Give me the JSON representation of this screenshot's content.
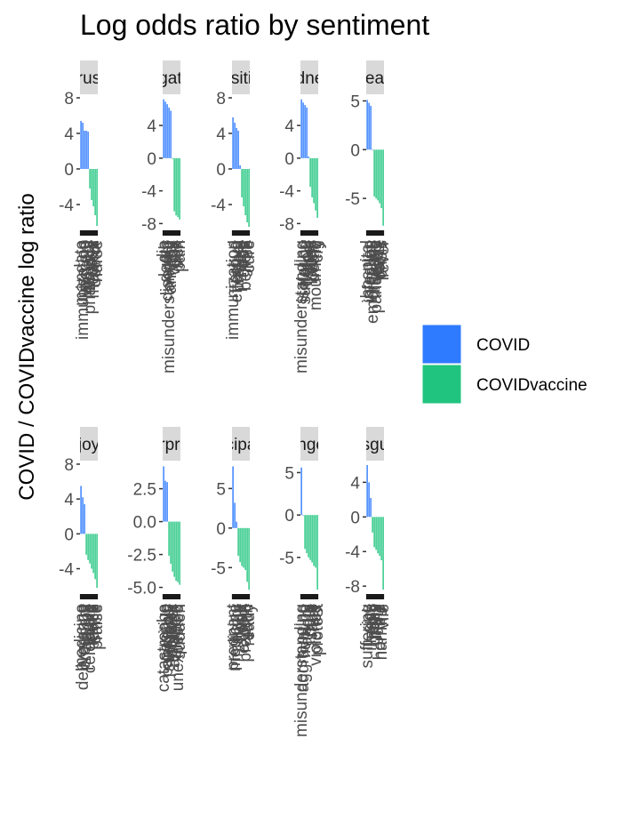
{
  "chart_data": {
    "type": "bar",
    "title": "Log odds ratio by sentiment",
    "xlabel": "",
    "ylabel": "COVID / COVIDvaccine log ratio",
    "legend": {
      "position": "right",
      "title": ""
    },
    "colors": {
      "COVID": "#2f7bff",
      "COVIDvaccine": "#21c47f"
    },
    "grid": false,
    "panels": [
      {
        "strip": "trust",
        "yticks": [
          "8",
          "4",
          "0",
          "-4"
        ],
        "tick_values": [
          8,
          4,
          0,
          -4
        ],
        "ylim": [
          -6.6,
          8.2
        ],
        "words": [
          "mandate",
          "immunization",
          "vaccine",
          "patient",
          "ministry",
          "pharmacy",
          "dose",
          "medical",
          "doctor",
          "nurse"
        ],
        "visible_words": [
          "mandate",
          "immunization"
        ],
        "values": [
          5.4,
          5.2,
          4.3,
          4.3,
          4.2,
          -2.2,
          -3.5,
          -4.2,
          -5.2,
          -6.4
        ]
      },
      {
        "strip": "negative",
        "yticks": [
          "4",
          "0",
          "-4",
          "-8"
        ],
        "tick_values": [
          4,
          0,
          -4,
          -8
        ],
        "ylim": [
          -8.5,
          7.6
        ],
        "words": [
          "die",
          "death",
          "disorder",
          "misunderstanding",
          "anxiety",
          "risk",
          "virus",
          "bad",
          "sick",
          "pain"
        ],
        "visible_words": [
          "die",
          "disorder",
          "misunderstanding"
        ],
        "values": [
          7.2,
          6.9,
          6.6,
          6.2,
          5.8,
          -0.1,
          -6.5,
          -7.0,
          -7.2,
          -7.5
        ]
      },
      {
        "strip": "positive",
        "yticks": [
          "8",
          "4",
          "0",
          "-4"
        ],
        "tick_values": [
          8,
          4,
          0,
          -4
        ],
        "ylim": [
          -6.6,
          8.2
        ],
        "words": [
          "immunization",
          "proud",
          "effective",
          "protect",
          "safe",
          "hope",
          "good",
          "benefit",
          "free",
          "cure"
        ],
        "visible_words": [
          "immunization",
          "proud"
        ],
        "values": [
          5.8,
          5.2,
          4.6,
          4.3,
          0.4,
          -3.2,
          -4.2,
          -5.2,
          -6.0,
          -6.5
        ]
      },
      {
        "strip": "sadness",
        "yticks": [
          "4",
          "0",
          "-4",
          "-8"
        ],
        "tick_values": [
          4,
          0,
          -4,
          -8
        ],
        "ylim": [
          -8.5,
          7.6
        ],
        "words": [
          "misunderstanding",
          "isolation",
          "suffering",
          "widow",
          "grief",
          "loss",
          "lonely",
          "death",
          "mourning",
          "cry"
        ],
        "visible_words": [
          "misunderstanding",
          "isolation"
        ],
        "values": [
          7.2,
          6.8,
          6.5,
          6.2,
          0.2,
          -3.5,
          -4.8,
          -5.5,
          -6.4,
          -7.3
        ]
      },
      {
        "strip": "fear",
        "yticks": [
          "5",
          "0",
          "-5"
        ],
        "tick_values": [
          5,
          0,
          -5
        ],
        "ylim": [
          -8.0,
          5.5
        ],
        "words": [
          "hospital",
          "infection",
          "injection",
          "emergency",
          "disease",
          "pandemic",
          "worry",
          "panic",
          "crisis",
          "fever"
        ],
        "visible_words": [
          "hospital",
          "infection"
        ],
        "values": [
          5.1,
          4.8,
          4.5,
          0.0,
          -4.8,
          -5.0,
          -5.2,
          -5.5,
          -6.0,
          -7.8
        ]
      },
      {
        "strip": "joy",
        "yticks": [
          "8",
          "4",
          "0",
          "-4"
        ],
        "tick_values": [
          8,
          4,
          0,
          -4
        ],
        "ylim": [
          -6.6,
          8.2
        ],
        "words": [
          "medicine",
          "deliverance",
          "pregnant",
          "happy",
          "love",
          "celebrate",
          "friend",
          "peace",
          "smile",
          "praise"
        ],
        "visible_words": [
          "medicine",
          "deliverance"
        ],
        "values": [
          5.5,
          4.2,
          3.4,
          -2.4,
          -3.0,
          -3.4,
          -4.0,
          -4.5,
          -5.2,
          -6.2
        ]
      },
      {
        "strip": "surprise",
        "yticks": [
          "2.5",
          "0.0",
          "-2.5",
          "-5.0"
        ],
        "tick_values": [
          2.5,
          0.0,
          -2.5,
          -5.0
        ],
        "ylim": [
          -5.3,
          4.5
        ],
        "words": [
          "catastrophe",
          "positive",
          "pandemic",
          "suddenly",
          "shock",
          "wonder",
          "amazing",
          "miracle",
          "unexpected",
          "sudden"
        ],
        "visible_words": [
          "catastrophe",
          "pandemic"
        ],
        "values": [
          4.2,
          3.1,
          3.0,
          -2.6,
          -3.2,
          -3.8,
          -4.2,
          -4.5,
          -4.6,
          -4.8
        ]
      },
      {
        "strip": "anticipation",
        "yticks": [
          "5",
          "0",
          "-5"
        ],
        "tick_values": [
          5,
          0,
          -5
        ],
        "ylim": [
          -8.0,
          8.3
        ],
        "words": [
          "pregnant",
          "medicine",
          "ministry",
          "plan",
          "hope",
          "wait",
          "expect",
          "prepare",
          "soon",
          "ready"
        ],
        "visible_words": [
          "pregnant",
          "medicine"
        ],
        "values": [
          7.8,
          3.2,
          0.8,
          -3.5,
          -4.3,
          -4.8,
          -5.0,
          -5.3,
          -6.8,
          -7.8
        ]
      },
      {
        "strip": "anger",
        "yticks": [
          "5",
          "0",
          "-5"
        ],
        "tick_values": [
          5,
          0,
          -5
        ],
        "ylim": [
          -9.0,
          6.2
        ],
        "words": [
          "misunderstanding",
          "aggravating",
          "fighting",
          "angry",
          "hate",
          "mad",
          "rage",
          "fury",
          "violence",
          "protest"
        ],
        "visible_words": [
          "misunderstanding",
          "aggravating"
        ],
        "values": [
          5.6,
          0.0,
          -4.0,
          -4.5,
          -5.0,
          -5.3,
          -5.6,
          -6.0,
          -6.2,
          -8.8
        ]
      },
      {
        "strip": "disgust",
        "yticks": [
          "4",
          "0",
          "-4",
          "-8"
        ],
        "tick_values": [
          4,
          0,
          -4,
          -8
        ],
        "ylim": [
          -8.6,
          6.3
        ],
        "words": [
          "suffering",
          "sick",
          "illness",
          "ugly",
          "gross",
          "filthy",
          "dirty",
          "horrible",
          "harmful",
          "vile"
        ],
        "visible_words": [
          "suffering",
          "sick"
        ],
        "values": [
          6.0,
          4.0,
          2.2,
          -1.8,
          -3.5,
          -3.8,
          -4.2,
          -4.5,
          -5.0,
          -8.4
        ]
      }
    ],
    "legend_entries": [
      "COVID",
      "COVIDvaccine"
    ]
  }
}
